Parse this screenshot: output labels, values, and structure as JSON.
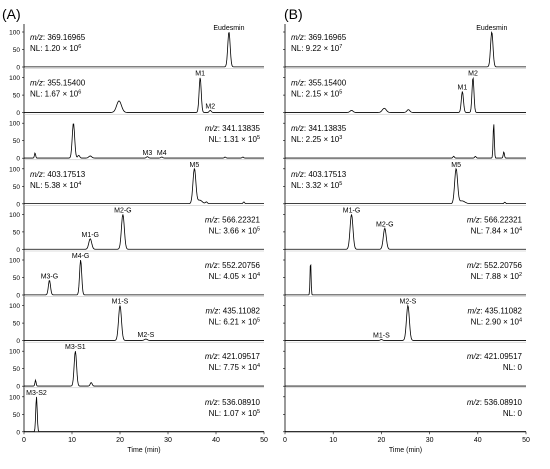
{
  "panels": [
    {
      "label": "(A)",
      "x_axis": {
        "title": "Time (min)",
        "ticks": [
          0,
          10,
          20,
          30,
          40,
          50
        ],
        "range": [
          0,
          50
        ]
      },
      "y_ticks": [
        0,
        50,
        100
      ],
      "traces": [
        {
          "mz": "369.16965",
          "nl_base": "1.20 × 10",
          "nl_exp": "6",
          "label_side": "left",
          "peaks": [
            {
              "x": 42.7,
              "y": 100,
              "w": 0.25,
              "label": "Eudesmin"
            }
          ]
        },
        {
          "mz": "355.15400",
          "nl_base": "1.67 × 10",
          "nl_exp": "6",
          "label_side": "left",
          "peaks": [
            {
              "x": 19.8,
              "y": 33,
              "w": 0.5
            },
            {
              "x": 36.7,
              "y": 100,
              "w": 0.22,
              "label": "M1"
            },
            {
              "x": 38.8,
              "y": 6,
              "w": 0.2,
              "label": "M2"
            }
          ]
        },
        {
          "mz": "341.13835",
          "nl_base": "1.31 × 10",
          "nl_exp": "5",
          "label_side": "right",
          "peaks": [
            {
              "x": 2.3,
              "y": 15,
              "w": 0.12
            },
            {
              "x": 10.3,
              "y": 100,
              "w": 0.25
            },
            {
              "x": 11.4,
              "y": 8,
              "w": 0.2
            },
            {
              "x": 13.8,
              "y": 6,
              "w": 0.3
            },
            {
              "x": 25.7,
              "y": 4,
              "w": 0.2,
              "label": "M3"
            },
            {
              "x": 28.7,
              "y": 3,
              "w": 0.2,
              "label": "M4"
            },
            {
              "x": 41.9,
              "y": 3,
              "w": 0.15
            },
            {
              "x": 45.6,
              "y": 3,
              "w": 0.15
            }
          ]
        },
        {
          "mz": "403.17513",
          "nl_base": "5.38 × 10",
          "nl_exp": "4",
          "label_side": "left",
          "peaks": [
            {
              "x": 35.5,
              "y": 100,
              "w": 0.3,
              "label": "M5"
            },
            {
              "x": 36.6,
              "y": 10,
              "w": 0.5
            },
            {
              "x": 38.0,
              "y": 5,
              "w": 0.2
            },
            {
              "x": 45.8,
              "y": 5,
              "w": 0.15
            }
          ]
        },
        {
          "mz": "566.22321",
          "nl_base": "3.66 × 10",
          "nl_exp": "5",
          "label_side": "right",
          "peaks": [
            {
              "x": 13.8,
              "y": 30,
              "w": 0.3,
              "label": "M1-G"
            },
            {
              "x": 20.6,
              "y": 100,
              "w": 0.3,
              "label": "M2-G"
            }
          ]
        },
        {
          "mz": "552.20756",
          "nl_base": "4.05 × 10",
          "nl_exp": "4",
          "label_side": "right",
          "peaks": [
            {
              "x": 5.3,
              "y": 42,
              "w": 0.22,
              "label": "M3-G"
            },
            {
              "x": 11.8,
              "y": 100,
              "w": 0.22,
              "label": "M4-G"
            }
          ]
        },
        {
          "mz": "435.11082",
          "nl_base": "6.21 × 10",
          "nl_exp": "5",
          "label_side": "right",
          "peaks": [
            {
              "x": 20.0,
              "y": 100,
              "w": 0.3,
              "label": "M1-S"
            },
            {
              "x": 25.4,
              "y": 4,
              "w": 0.3,
              "label": "M2-S"
            }
          ]
        },
        {
          "mz": "421.09517",
          "nl_base": "7.75 × 10",
          "nl_exp": "4",
          "label_side": "right",
          "peaks": [
            {
              "x": 2.4,
              "y": 17,
              "w": 0.12
            },
            {
              "x": 10.7,
              "y": 100,
              "w": 0.25,
              "label": "M3-S1"
            },
            {
              "x": 14.0,
              "y": 10,
              "w": 0.2
            }
          ]
        },
        {
          "mz": "536.08910",
          "nl_base": "1.07 × 10",
          "nl_exp": "5",
          "label_side": "right",
          "peaks": [
            {
              "x": 2.6,
              "y": 100,
              "w": 0.15,
              "label": "M3-S2"
            }
          ]
        }
      ]
    },
    {
      "label": "(B)",
      "x_axis": {
        "title": "Time (min)",
        "ticks": [
          0,
          10,
          20,
          30,
          40,
          50
        ],
        "range": [
          0,
          50
        ]
      },
      "traces": [
        {
          "mz": "369.16965",
          "nl_base": "9.22 × 10",
          "nl_exp": "7",
          "label_side": "left",
          "peaks": [
            {
              "x": 42.9,
              "y": 100,
              "w": 0.25,
              "label": "Eudesmin"
            }
          ]
        },
        {
          "mz": "355.15400",
          "nl_base": "2.15 × 10",
          "nl_exp": "5",
          "label_side": "left",
          "peaks": [
            {
              "x": 13.8,
              "y": 6,
              "w": 0.3
            },
            {
              "x": 20.6,
              "y": 12,
              "w": 0.4
            },
            {
              "x": 25.6,
              "y": 8,
              "w": 0.3
            },
            {
              "x": 36.8,
              "y": 60,
              "w": 0.22,
              "label": "M1"
            },
            {
              "x": 39.0,
              "y": 100,
              "w": 0.2,
              "label": "M2"
            }
          ]
        },
        {
          "mz": "341.13835",
          "nl_base": "2.25 × 10",
          "nl_exp": "3",
          "label_side": "left",
          "peaks": [
            {
              "x": 35.0,
              "y": 5,
              "w": 0.15
            },
            {
              "x": 39.5,
              "y": 5,
              "w": 0.15
            },
            {
              "x": 43.3,
              "y": 100,
              "w": 0.12
            },
            {
              "x": 45.4,
              "y": 18,
              "w": 0.12
            }
          ]
        },
        {
          "mz": "403.17513",
          "nl_base": "3.32 × 10",
          "nl_exp": "5",
          "label_side": "left",
          "peaks": [
            {
              "x": 35.5,
              "y": 100,
              "w": 0.3,
              "label": "M5"
            },
            {
              "x": 36.7,
              "y": 8,
              "w": 0.6
            },
            {
              "x": 45.6,
              "y": 4,
              "w": 0.15
            }
          ]
        },
        {
          "mz": "566.22321",
          "nl_base": "7.84 × 10",
          "nl_exp": "4",
          "label_side": "right",
          "peaks": [
            {
              "x": 13.8,
              "y": 100,
              "w": 0.3,
              "label": "M1-G"
            },
            {
              "x": 20.7,
              "y": 60,
              "w": 0.3,
              "label": "M2-G"
            }
          ]
        },
        {
          "mz": "552.20756",
          "nl_base": "7.88 × 10",
          "nl_exp": "2",
          "label_side": "right",
          "peaks": [
            {
              "x": 5.3,
              "y": 100,
              "w": 0.1
            }
          ]
        },
        {
          "mz": "435.11082",
          "nl_base": "2.90 × 10",
          "nl_exp": "4",
          "label_side": "right",
          "peaks": [
            {
              "x": 20.0,
              "y": 3,
              "w": 0.2,
              "label": "M1-S"
            },
            {
              "x": 25.5,
              "y": 100,
              "w": 0.3,
              "label": "M2-S"
            }
          ]
        },
        {
          "mz": "421.09517",
          "nl_base": "0",
          "nl_exp": "",
          "label_side": "right",
          "peaks": []
        },
        {
          "mz": "536.08910",
          "nl_base": "0",
          "nl_exp": "",
          "label_side": "right",
          "peaks": []
        }
      ]
    }
  ],
  "chart_data": {
    "type": "line",
    "description_units": {
      "x": "min",
      "y": "relative abundance (%)"
    },
    "panels": [
      {
        "label": "(A)",
        "xlabel": "Time (min)",
        "xlim": [
          0,
          50
        ],
        "ylim": [
          0,
          100
        ],
        "series": [
          {
            "name": "m/z 369.16965",
            "peaks": [
              [
                42.7,
                100
              ]
            ]
          },
          {
            "name": "m/z 355.15400",
            "peaks": [
              [
                19.8,
                33
              ],
              [
                36.7,
                100
              ],
              [
                38.8,
                6
              ]
            ]
          },
          {
            "name": "m/z 341.13835",
            "peaks": [
              [
                2.3,
                15
              ],
              [
                10.3,
                100
              ],
              [
                11.4,
                8
              ],
              [
                13.8,
                6
              ],
              [
                25.7,
                4
              ],
              [
                28.7,
                3
              ]
            ]
          },
          {
            "name": "m/z 403.17513",
            "peaks": [
              [
                35.5,
                100
              ],
              [
                36.6,
                10
              ]
            ]
          },
          {
            "name": "m/z 566.22321",
            "peaks": [
              [
                13.8,
                30
              ],
              [
                20.6,
                100
              ]
            ]
          },
          {
            "name": "m/z 552.20756",
            "peaks": [
              [
                5.3,
                42
              ],
              [
                11.8,
                100
              ]
            ]
          },
          {
            "name": "m/z 435.11082",
            "peaks": [
              [
                20.0,
                100
              ],
              [
                25.4,
                4
              ]
            ]
          },
          {
            "name": "m/z 421.09517",
            "peaks": [
              [
                2.4,
                17
              ],
              [
                10.7,
                100
              ],
              [
                14.0,
                10
              ]
            ]
          },
          {
            "name": "m/z 536.08910",
            "peaks": [
              [
                2.6,
                100
              ]
            ]
          }
        ]
      },
      {
        "label": "(B)",
        "xlabel": "Time (min)",
        "xlim": [
          0,
          50
        ],
        "ylim": [
          0,
          100
        ],
        "series": [
          {
            "name": "m/z 369.16965",
            "peaks": [
              [
                42.9,
                100
              ]
            ]
          },
          {
            "name": "m/z 355.15400",
            "peaks": [
              [
                36.8,
                60
              ],
              [
                39.0,
                100
              ]
            ]
          },
          {
            "name": "m/z 341.13835",
            "peaks": [
              [
                43.3,
                100
              ],
              [
                45.4,
                18
              ]
            ]
          },
          {
            "name": "m/z 403.17513",
            "peaks": [
              [
                35.5,
                100
              ]
            ]
          },
          {
            "name": "m/z 566.22321",
            "peaks": [
              [
                13.8,
                100
              ],
              [
                20.7,
                60
              ]
            ]
          },
          {
            "name": "m/z 552.20756",
            "peaks": [
              [
                5.3,
                100
              ]
            ]
          },
          {
            "name": "m/z 435.11082",
            "peaks": [
              [
                20.0,
                3
              ],
              [
                25.5,
                100
              ]
            ]
          },
          {
            "name": "m/z 421.09517",
            "peaks": []
          },
          {
            "name": "m/z 536.08910",
            "peaks": []
          }
        ]
      }
    ]
  }
}
